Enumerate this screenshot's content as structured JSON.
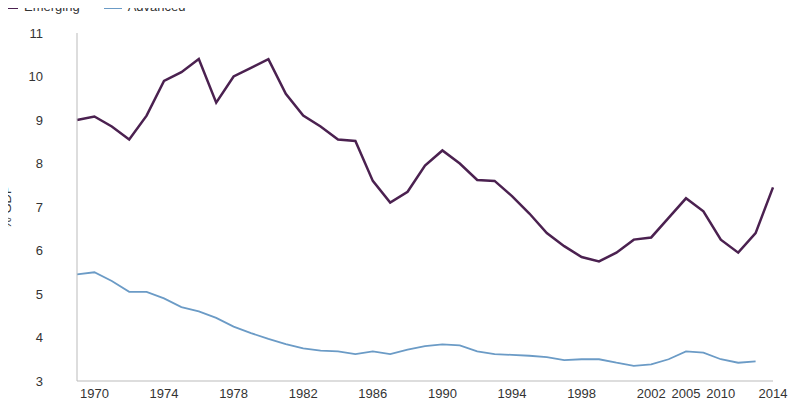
{
  "chart_data": {
    "type": "line",
    "y_label": "% GDP",
    "categories": [
      null,
      "1970",
      null,
      null,
      null,
      "1974",
      null,
      null,
      null,
      "1978",
      null,
      null,
      null,
      "1982",
      null,
      null,
      null,
      "1986",
      null,
      null,
      null,
      "1990",
      null,
      null,
      null,
      "1994",
      null,
      null,
      null,
      "1998",
      null,
      null,
      null,
      "2002",
      null,
      "2005",
      null,
      "2010",
      null,
      null,
      "2014"
    ],
    "series": [
      {
        "name": "Emerging",
        "color": "#4b2150",
        "values": [
          9.0,
          9.08,
          8.85,
          8.55,
          9.1,
          9.9,
          10.1,
          10.4,
          9.4,
          10.0,
          10.2,
          10.4,
          9.6,
          9.1,
          8.85,
          8.55,
          8.52,
          7.6,
          7.1,
          7.35,
          7.95,
          8.3,
          8.0,
          7.62,
          7.6,
          7.25,
          6.85,
          6.4,
          6.1,
          5.85,
          5.75,
          5.95,
          6.25,
          6.3,
          6.75,
          7.2,
          6.9,
          6.25,
          5.95,
          6.4,
          7.45
        ]
      },
      {
        "name": "Advanced",
        "color": "#6b9bc6",
        "values": [
          5.45,
          5.5,
          5.3,
          5.05,
          5.05,
          4.9,
          4.7,
          4.6,
          4.45,
          4.25,
          4.1,
          3.97,
          3.85,
          3.75,
          3.7,
          3.68,
          3.62,
          3.68,
          3.62,
          3.72,
          3.8,
          3.84,
          3.82,
          3.68,
          3.62,
          3.6,
          3.58,
          3.55,
          3.48,
          3.5,
          3.5,
          3.42,
          3.35,
          3.38,
          3.5,
          3.68,
          3.65,
          3.5,
          3.42,
          3.45,
          null
        ]
      }
    ],
    "ylim": [
      3,
      11
    ],
    "yticks": [
      3,
      4,
      5,
      6,
      7,
      8,
      9,
      10,
      11
    ],
    "grid": false,
    "legend": "upper left"
  }
}
